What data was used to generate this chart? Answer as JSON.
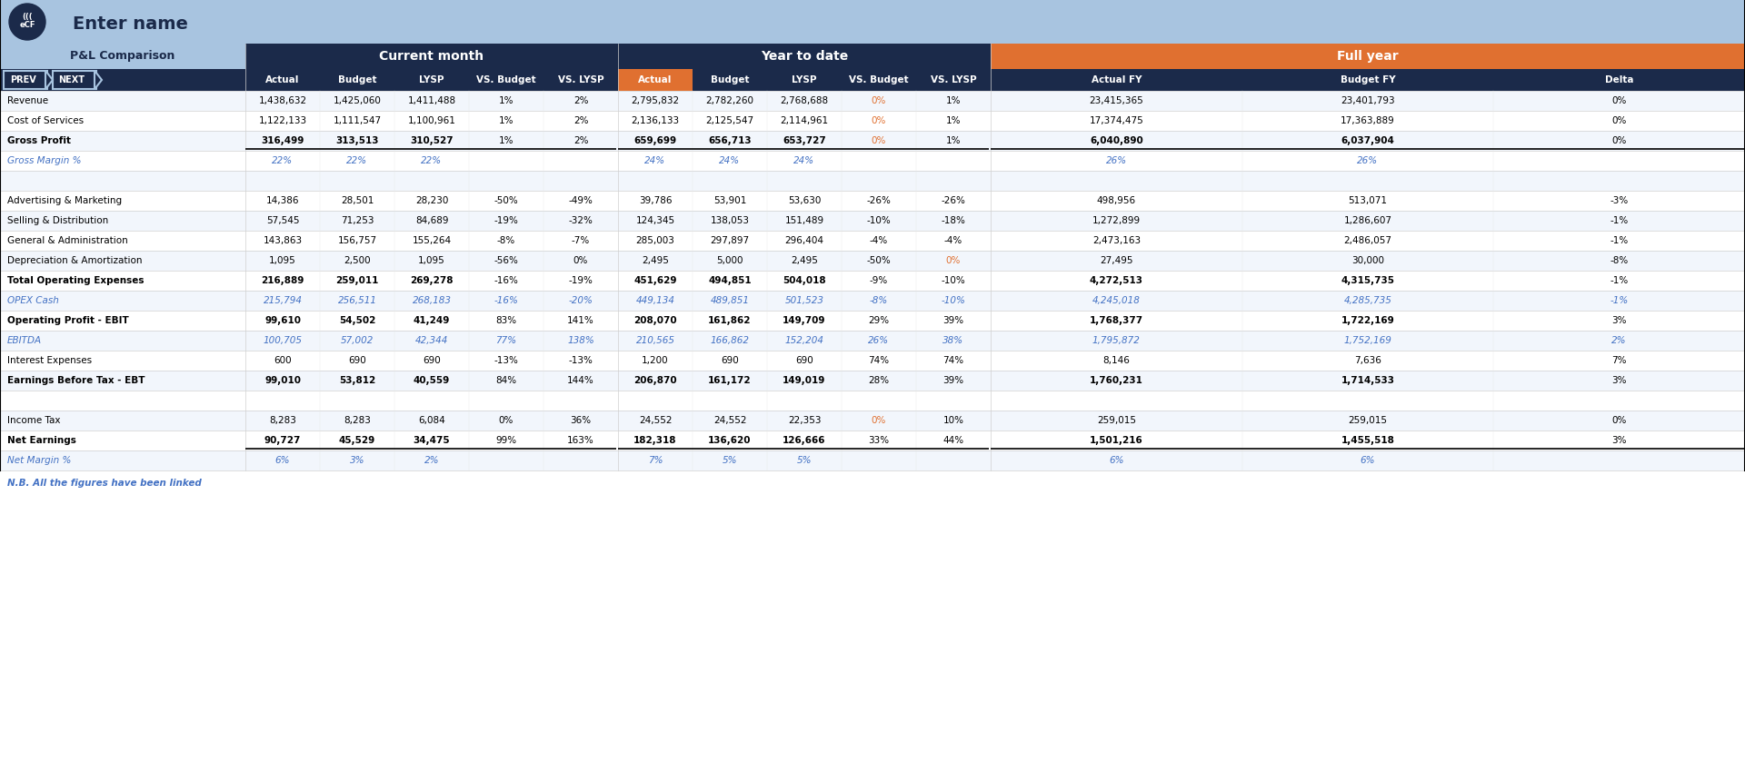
{
  "title": "Enter name",
  "subtitle": "P&L Comparison",
  "header_bg": "#1B2A4A",
  "header_light_bg": "#A8C4E0",
  "orange_bg": "#E07030",
  "section_headers": {
    "current_month": "Current month",
    "year_to_date": "Year to date",
    "full_year": "Full year"
  },
  "rows": [
    {
      "label": "Revenue",
      "bold": false,
      "italic": false,
      "color": "#000000",
      "cm_actual": "1,438,632",
      "cm_budget": "1,425,060",
      "cm_lysp": "1,411,488",
      "cm_vsb": "1%",
      "cm_vsl": "2%",
      "ytd_actual": "2,795,832",
      "ytd_budget": "2,782,260",
      "ytd_lysp": "2,768,688",
      "ytd_vsb": "0%",
      "ytd_vsl": "1%",
      "fy_actual": "23,415,365",
      "fy_budget": "23,401,793",
      "fy_delta": "0%",
      "cm_vsb_color": "#000000",
      "cm_vsl_color": "#000000",
      "ytd_vsb_color": "#E07030",
      "ytd_vsl_color": "#000000",
      "fy_delta_color": "#000000"
    },
    {
      "label": "Cost of Services",
      "bold": false,
      "italic": false,
      "color": "#000000",
      "cm_actual": "1,122,133",
      "cm_budget": "1,111,547",
      "cm_lysp": "1,100,961",
      "cm_vsb": "1%",
      "cm_vsl": "2%",
      "ytd_actual": "2,136,133",
      "ytd_budget": "2,125,547",
      "ytd_lysp": "2,114,961",
      "ytd_vsb": "0%",
      "ytd_vsl": "1%",
      "fy_actual": "17,374,475",
      "fy_budget": "17,363,889",
      "fy_delta": "0%",
      "cm_vsb_color": "#000000",
      "cm_vsl_color": "#000000",
      "ytd_vsb_color": "#E07030",
      "ytd_vsl_color": "#000000",
      "fy_delta_color": "#000000"
    },
    {
      "label": "Gross Profit",
      "bold": true,
      "italic": false,
      "color": "#000000",
      "cm_actual": "316,499",
      "cm_budget": "313,513",
      "cm_lysp": "310,527",
      "cm_vsb": "1%",
      "cm_vsl": "2%",
      "ytd_actual": "659,699",
      "ytd_budget": "656,713",
      "ytd_lysp": "653,727",
      "ytd_vsb": "0%",
      "ytd_vsl": "1%",
      "fy_actual": "6,040,890",
      "fy_budget": "6,037,904",
      "fy_delta": "0%",
      "cm_vsb_color": "#000000",
      "cm_vsl_color": "#000000",
      "ytd_vsb_color": "#E07030",
      "ytd_vsl_color": "#000000",
      "fy_delta_color": "#000000",
      "underline": true
    },
    {
      "label": "Gross Margin %",
      "bold": false,
      "italic": true,
      "color": "#4472C4",
      "cm_actual": "22%",
      "cm_budget": "22%",
      "cm_lysp": "22%",
      "cm_vsb": "",
      "cm_vsl": "",
      "ytd_actual": "24%",
      "ytd_budget": "24%",
      "ytd_lysp": "24%",
      "ytd_vsb": "",
      "ytd_vsl": "",
      "fy_actual": "26%",
      "fy_budget": "26%",
      "fy_delta": "",
      "cm_vsb_color": "#4472C4",
      "cm_vsl_color": "#4472C4",
      "ytd_vsb_color": "#4472C4",
      "ytd_vsl_color": "#4472C4",
      "fy_delta_color": "#4472C4"
    },
    {
      "label": "",
      "bold": false,
      "italic": false,
      "color": "#000000",
      "cm_actual": "",
      "cm_budget": "",
      "cm_lysp": "",
      "cm_vsb": "",
      "cm_vsl": "",
      "ytd_actual": "",
      "ytd_budget": "",
      "ytd_lysp": "",
      "ytd_vsb": "",
      "ytd_vsl": "",
      "fy_actual": "",
      "fy_budget": "",
      "fy_delta": "",
      "cm_vsb_color": "#000000",
      "cm_vsl_color": "#000000",
      "ytd_vsb_color": "#000000",
      "ytd_vsl_color": "#000000",
      "fy_delta_color": "#000000"
    },
    {
      "label": "Advertising & Marketing",
      "bold": false,
      "italic": false,
      "color": "#000000",
      "cm_actual": "14,386",
      "cm_budget": "28,501",
      "cm_lysp": "28,230",
      "cm_vsb": "-50%",
      "cm_vsl": "-49%",
      "ytd_actual": "39,786",
      "ytd_budget": "53,901",
      "ytd_lysp": "53,630",
      "ytd_vsb": "-26%",
      "ytd_vsl": "-26%",
      "fy_actual": "498,956",
      "fy_budget": "513,071",
      "fy_delta": "-3%",
      "cm_vsb_color": "#000000",
      "cm_vsl_color": "#000000",
      "ytd_vsb_color": "#000000",
      "ytd_vsl_color": "#000000",
      "fy_delta_color": "#000000"
    },
    {
      "label": "Selling & Distribution",
      "bold": false,
      "italic": false,
      "color": "#000000",
      "cm_actual": "57,545",
      "cm_budget": "71,253",
      "cm_lysp": "84,689",
      "cm_vsb": "-19%",
      "cm_vsl": "-32%",
      "ytd_actual": "124,345",
      "ytd_budget": "138,053",
      "ytd_lysp": "151,489",
      "ytd_vsb": "-10%",
      "ytd_vsl": "-18%",
      "fy_actual": "1,272,899",
      "fy_budget": "1,286,607",
      "fy_delta": "-1%",
      "cm_vsb_color": "#000000",
      "cm_vsl_color": "#000000",
      "ytd_vsb_color": "#000000",
      "ytd_vsl_color": "#000000",
      "fy_delta_color": "#000000"
    },
    {
      "label": "General & Administration",
      "bold": false,
      "italic": false,
      "color": "#000000",
      "cm_actual": "143,863",
      "cm_budget": "156,757",
      "cm_lysp": "155,264",
      "cm_vsb": "-8%",
      "cm_vsl": "-7%",
      "ytd_actual": "285,003",
      "ytd_budget": "297,897",
      "ytd_lysp": "296,404",
      "ytd_vsb": "-4%",
      "ytd_vsl": "-4%",
      "fy_actual": "2,473,163",
      "fy_budget": "2,486,057",
      "fy_delta": "-1%",
      "cm_vsb_color": "#000000",
      "cm_vsl_color": "#000000",
      "ytd_vsb_color": "#000000",
      "ytd_vsl_color": "#000000",
      "fy_delta_color": "#000000"
    },
    {
      "label": "Depreciation & Amortization",
      "bold": false,
      "italic": false,
      "color": "#000000",
      "cm_actual": "1,095",
      "cm_budget": "2,500",
      "cm_lysp": "1,095",
      "cm_vsb": "-56%",
      "cm_vsl": "0%",
      "ytd_actual": "2,495",
      "ytd_budget": "5,000",
      "ytd_lysp": "2,495",
      "ytd_vsb": "-50%",
      "ytd_vsl": "0%",
      "fy_actual": "27,495",
      "fy_budget": "30,000",
      "fy_delta": "-8%",
      "cm_vsb_color": "#000000",
      "cm_vsl_color": "#000000",
      "ytd_vsb_color": "#000000",
      "ytd_vsl_color": "#E07030",
      "fy_delta_color": "#000000"
    },
    {
      "label": "Total Operating Expenses",
      "bold": true,
      "italic": false,
      "color": "#000000",
      "cm_actual": "216,889",
      "cm_budget": "259,011",
      "cm_lysp": "269,278",
      "cm_vsb": "-16%",
      "cm_vsl": "-19%",
      "ytd_actual": "451,629",
      "ytd_budget": "494,851",
      "ytd_lysp": "504,018",
      "ytd_vsb": "-9%",
      "ytd_vsl": "-10%",
      "fy_actual": "4,272,513",
      "fy_budget": "4,315,735",
      "fy_delta": "-1%",
      "cm_vsb_color": "#000000",
      "cm_vsl_color": "#000000",
      "ytd_vsb_color": "#000000",
      "ytd_vsl_color": "#000000",
      "fy_delta_color": "#000000"
    },
    {
      "label": "OPEX Cash",
      "bold": false,
      "italic": true,
      "color": "#4472C4",
      "cm_actual": "215,794",
      "cm_budget": "256,511",
      "cm_lysp": "268,183",
      "cm_vsb": "-16%",
      "cm_vsl": "-20%",
      "ytd_actual": "449,134",
      "ytd_budget": "489,851",
      "ytd_lysp": "501,523",
      "ytd_vsb": "-8%",
      "ytd_vsl": "-10%",
      "fy_actual": "4,245,018",
      "fy_budget": "4,285,735",
      "fy_delta": "-1%",
      "cm_vsb_color": "#4472C4",
      "cm_vsl_color": "#4472C4",
      "ytd_vsb_color": "#4472C4",
      "ytd_vsl_color": "#4472C4",
      "fy_delta_color": "#4472C4"
    },
    {
      "label": "Operating Profit - EBIT",
      "bold": true,
      "italic": false,
      "color": "#000000",
      "cm_actual": "99,610",
      "cm_budget": "54,502",
      "cm_lysp": "41,249",
      "cm_vsb": "83%",
      "cm_vsl": "141%",
      "ytd_actual": "208,070",
      "ytd_budget": "161,862",
      "ytd_lysp": "149,709",
      "ytd_vsb": "29%",
      "ytd_vsl": "39%",
      "fy_actual": "1,768,377",
      "fy_budget": "1,722,169",
      "fy_delta": "3%",
      "cm_vsb_color": "#000000",
      "cm_vsl_color": "#000000",
      "ytd_vsb_color": "#000000",
      "ytd_vsl_color": "#000000",
      "fy_delta_color": "#000000"
    },
    {
      "label": "EBITDA",
      "bold": false,
      "italic": true,
      "color": "#4472C4",
      "cm_actual": "100,705",
      "cm_budget": "57,002",
      "cm_lysp": "42,344",
      "cm_vsb": "77%",
      "cm_vsl": "138%",
      "ytd_actual": "210,565",
      "ytd_budget": "166,862",
      "ytd_lysp": "152,204",
      "ytd_vsb": "26%",
      "ytd_vsl": "38%",
      "fy_actual": "1,795,872",
      "fy_budget": "1,752,169",
      "fy_delta": "2%",
      "cm_vsb_color": "#4472C4",
      "cm_vsl_color": "#4472C4",
      "ytd_vsb_color": "#4472C4",
      "ytd_vsl_color": "#4472C4",
      "fy_delta_color": "#4472C4"
    },
    {
      "label": "Interest Expenses",
      "bold": false,
      "italic": false,
      "color": "#000000",
      "cm_actual": "600",
      "cm_budget": "690",
      "cm_lysp": "690",
      "cm_vsb": "-13%",
      "cm_vsl": "-13%",
      "ytd_actual": "1,200",
      "ytd_budget": "690",
      "ytd_lysp": "690",
      "ytd_vsb": "74%",
      "ytd_vsl": "74%",
      "fy_actual": "8,146",
      "fy_budget": "7,636",
      "fy_delta": "7%",
      "cm_vsb_color": "#000000",
      "cm_vsl_color": "#000000",
      "ytd_vsb_color": "#000000",
      "ytd_vsl_color": "#000000",
      "fy_delta_color": "#000000"
    },
    {
      "label": "Earnings Before Tax - EBT",
      "bold": true,
      "italic": false,
      "color": "#000000",
      "cm_actual": "99,010",
      "cm_budget": "53,812",
      "cm_lysp": "40,559",
      "cm_vsb": "84%",
      "cm_vsl": "144%",
      "ytd_actual": "206,870",
      "ytd_budget": "161,172",
      "ytd_lysp": "149,019",
      "ytd_vsb": "28%",
      "ytd_vsl": "39%",
      "fy_actual": "1,760,231",
      "fy_budget": "1,714,533",
      "fy_delta": "3%",
      "cm_vsb_color": "#000000",
      "cm_vsl_color": "#000000",
      "ytd_vsb_color": "#000000",
      "ytd_vsl_color": "#000000",
      "fy_delta_color": "#000000"
    },
    {
      "label": "",
      "bold": false,
      "italic": false,
      "color": "#000000",
      "cm_actual": "",
      "cm_budget": "",
      "cm_lysp": "",
      "cm_vsb": "",
      "cm_vsl": "",
      "ytd_actual": "",
      "ytd_budget": "",
      "ytd_lysp": "",
      "ytd_vsb": "",
      "ytd_vsl": "",
      "fy_actual": "",
      "fy_budget": "",
      "fy_delta": "",
      "cm_vsb_color": "#000000",
      "cm_vsl_color": "#000000",
      "ytd_vsb_color": "#000000",
      "ytd_vsl_color": "#000000",
      "fy_delta_color": "#000000"
    },
    {
      "label": "Income Tax",
      "bold": false,
      "italic": false,
      "color": "#000000",
      "cm_actual": "8,283",
      "cm_budget": "8,283",
      "cm_lysp": "6,084",
      "cm_vsb": "0%",
      "cm_vsl": "36%",
      "ytd_actual": "24,552",
      "ytd_budget": "24,552",
      "ytd_lysp": "22,353",
      "ytd_vsb": "0%",
      "ytd_vsl": "10%",
      "fy_actual": "259,015",
      "fy_budget": "259,015",
      "fy_delta": "0%",
      "cm_vsb_color": "#000000",
      "cm_vsl_color": "#000000",
      "ytd_vsb_color": "#E07030",
      "ytd_vsl_color": "#000000",
      "fy_delta_color": "#000000"
    },
    {
      "label": "Net Earnings",
      "bold": true,
      "italic": false,
      "color": "#000000",
      "cm_actual": "90,727",
      "cm_budget": "45,529",
      "cm_lysp": "34,475",
      "cm_vsb": "99%",
      "cm_vsl": "163%",
      "ytd_actual": "182,318",
      "ytd_budget": "136,620",
      "ytd_lysp": "126,666",
      "ytd_vsb": "33%",
      "ytd_vsl": "44%",
      "fy_actual": "1,501,216",
      "fy_budget": "1,455,518",
      "fy_delta": "3%",
      "cm_vsb_color": "#000000",
      "cm_vsl_color": "#000000",
      "ytd_vsb_color": "#000000",
      "ytd_vsl_color": "#000000",
      "fy_delta_color": "#000000",
      "underline": true
    },
    {
      "label": "Net Margin %",
      "bold": false,
      "italic": true,
      "color": "#4472C4",
      "cm_actual": "6%",
      "cm_budget": "3%",
      "cm_lysp": "2%",
      "cm_vsb": "",
      "cm_vsl": "",
      "ytd_actual": "7%",
      "ytd_budget": "5%",
      "ytd_lysp": "5%",
      "ytd_vsb": "",
      "ytd_vsl": "",
      "fy_actual": "6%",
      "fy_budget": "6%",
      "fy_delta": "",
      "cm_vsb_color": "#4472C4",
      "cm_vsl_color": "#4472C4",
      "ytd_vsb_color": "#4472C4",
      "ytd_vsl_color": "#4472C4",
      "fy_delta_color": "#4472C4"
    }
  ],
  "footer_note": "N.B. All the figures have been linked"
}
